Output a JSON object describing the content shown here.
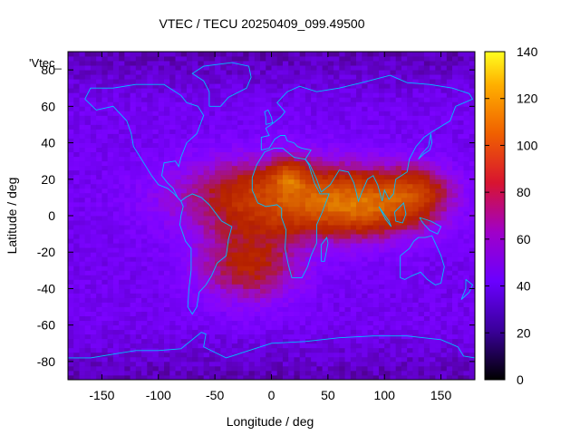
{
  "chart_data": {
    "type": "heatmap",
    "title": "VTEC / TECU 20250409_099.49500",
    "xlabel": "Longitude / deg",
    "ylabel": "Latitude / deg",
    "xlim": [
      -180,
      180
    ],
    "ylim": [
      -90,
      90
    ],
    "x_ticks": [
      -150,
      -100,
      -50,
      0,
      50,
      100,
      150
    ],
    "y_ticks": [
      -80,
      -60,
      -40,
      -20,
      0,
      20,
      40,
      60,
      80
    ],
    "colorbar": {
      "range": [
        0,
        140
      ],
      "ticks": [
        0,
        20,
        40,
        60,
        80,
        100,
        120,
        140
      ]
    },
    "legend_label": "'Vtec_",
    "grid_step_deg": {
      "lon": 5,
      "lat": 2.5
    },
    "field_model": {
      "description": "Approximate VTEC field (TECU) read from colors: background ~30 in mid latitudes, ~20 near poles, enhancement of 75-105 over Africa / Atlantic / Indian Ocean, peak ~120 near 15E 22N",
      "background": 28,
      "blobs": [
        {
          "lon": 10,
          "lat": 10,
          "amp": 62,
          "sig_lon": 62,
          "sig_lat": 15
        },
        {
          "lon": -20,
          "lat": -28,
          "amp": 42,
          "sig_lon": 32,
          "sig_lat": 14
        },
        {
          "lon": 90,
          "lat": 5,
          "amp": 48,
          "sig_lon": 40,
          "sig_lat": 12
        },
        {
          "lon": 130,
          "lat": 15,
          "amp": 30,
          "sig_lon": 22,
          "sig_lat": 10
        },
        {
          "lon": 15,
          "lat": 22,
          "amp": 30,
          "sig_lon": 10,
          "sig_lat": 6
        }
      ]
    }
  }
}
